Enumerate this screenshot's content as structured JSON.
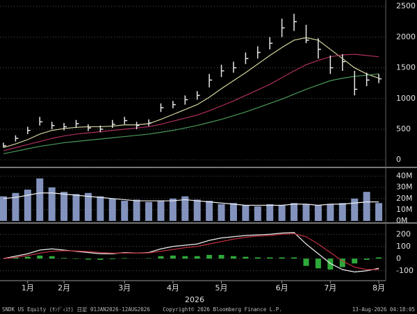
{
  "chart_data": [
    {
      "type": "ohlc",
      "high": [
        280,
        400,
        540,
        700,
        620,
        600,
        650,
        580,
        560,
        650,
        700,
        620,
        660,
        920,
        960,
        1050,
        1120,
        1400,
        1550,
        1600,
        1750,
        1850,
        2000,
        2300,
        2380,
        2200,
        1980,
        1700,
        1720,
        1450,
        1420,
        1400
      ],
      "low": [
        200,
        300,
        420,
        560,
        500,
        480,
        520,
        470,
        450,
        520,
        580,
        500,
        550,
        780,
        840,
        900,
        980,
        1180,
        1350,
        1420,
        1560,
        1650,
        1800,
        2000,
        2100,
        1900,
        1650,
        1400,
        1450,
        1050,
        1200,
        1250
      ],
      "close": [
        230,
        350,
        480,
        620,
        560,
        540,
        590,
        520,
        500,
        580,
        640,
        560,
        600,
        850,
        900,
        980,
        1050,
        1300,
        1450,
        1500,
        1650,
        1750,
        1900,
        2150,
        2250,
        1950,
        1800,
        1500,
        1600,
        1150,
        1300,
        1320
      ],
      "color": "#e8e8e8",
      "lines": [
        {
          "color": "#d6d6a0",
          "values": [
            200,
            260,
            330,
            420,
            480,
            510,
            530,
            540,
            540,
            550,
            570,
            570,
            590,
            660,
            740,
            820,
            900,
            1020,
            1160,
            1290,
            1420,
            1560,
            1700,
            1830,
            1950,
            1990,
            1950,
            1800,
            1650,
            1500,
            1400,
            1330
          ]
        },
        {
          "color": "#b03060",
          "values": [
            150,
            200,
            250,
            300,
            350,
            390,
            420,
            440,
            460,
            480,
            500,
            520,
            540,
            580,
            630,
            680,
            730,
            800,
            880,
            960,
            1050,
            1140,
            1230,
            1340,
            1450,
            1550,
            1620,
            1680,
            1710,
            1720,
            1700,
            1680
          ]
        },
        {
          "color": "#4a9a5a",
          "values": [
            100,
            140,
            180,
            220,
            250,
            280,
            300,
            320,
            340,
            360,
            380,
            400,
            420,
            450,
            480,
            520,
            560,
            610,
            660,
            720,
            780,
            850,
            920,
            990,
            1070,
            1150,
            1220,
            1290,
            1330,
            1360,
            1380,
            1400
          ]
        }
      ],
      "ylim": [
        -100,
        2570
      ],
      "yticks": [
        0,
        500,
        1000,
        1500,
        2000,
        2500
      ],
      "grid": true
    },
    {
      "type": "bar",
      "values": [
        22000000,
        25000000,
        28000000,
        38000000,
        30000000,
        26000000,
        24000000,
        25000000,
        22000000,
        20000000,
        18000000,
        19000000,
        17000000,
        18000000,
        20000000,
        22000000,
        19000000,
        18000000,
        15000000,
        16000000,
        14000000,
        13000000,
        15000000,
        14000000,
        16000000,
        15000000,
        14000000,
        15000000,
        16000000,
        20000000,
        26000000,
        16000000
      ],
      "color": "#8393bd",
      "lines": [
        {
          "color": "#f0f0f0",
          "values": [
            20000000,
            21000000,
            23000000,
            25000000,
            25000000,
            24000000,
            23000000,
            22000000,
            21000000,
            20000000,
            19000000,
            18000000,
            18000000,
            18000000,
            18000000,
            19000000,
            18000000,
            17000000,
            16000000,
            15000000,
            14000000,
            14000000,
            14000000,
            14000000,
            15000000,
            15000000,
            14000000,
            15000000,
            15000000,
            16000000,
            17000000,
            17000000
          ]
        }
      ],
      "ylim": [
        0,
        46000000
      ],
      "yticks": [
        {
          "value": 0,
          "label": "0M"
        },
        {
          "value": 10000000,
          "label": "10M"
        },
        {
          "value": 20000000,
          "label": "20M"
        },
        {
          "value": 30000000,
          "label": "30M"
        },
        {
          "value": 40000000,
          "label": "40M"
        }
      ],
      "grid": true
    },
    {
      "type": "macd",
      "categories": [
        null,
        null,
        "1月",
        null,
        null,
        "2月",
        null,
        null,
        null,
        null,
        "3月",
        null,
        null,
        null,
        "4月",
        null,
        null,
        null,
        "5月",
        null,
        null,
        null,
        null,
        "6月",
        null,
        null,
        null,
        "7月",
        null,
        null,
        null,
        "8月"
      ],
      "histogram": {
        "color": "#2fa83a",
        "values": [
          0,
          10,
          15,
          25,
          20,
          5,
          -3,
          -8,
          -10,
          -5,
          4,
          0,
          3,
          20,
          25,
          20,
          20,
          30,
          30,
          20,
          15,
          10,
          10,
          10,
          10,
          -60,
          -80,
          -90,
          -70,
          -40,
          -10,
          10
        ]
      },
      "lines": [
        {
          "color": "#f0f0f0",
          "values": [
            0,
            20,
            40,
            70,
            80,
            70,
            60,
            50,
            40,
            40,
            50,
            45,
            50,
            80,
            100,
            110,
            120,
            150,
            170,
            180,
            190,
            195,
            200,
            210,
            215,
            120,
            40,
            -40,
            -90,
            -110,
            -100,
            -80
          ]
        },
        {
          "color": "#c03040",
          "values": [
            0,
            10,
            25,
            45,
            60,
            65,
            63,
            58,
            50,
            45,
            46,
            45,
            47,
            60,
            75,
            90,
            100,
            120,
            140,
            160,
            175,
            185,
            190,
            200,
            205,
            180,
            120,
            50,
            -20,
            -70,
            -90,
            -90
          ]
        }
      ],
      "xlabel": "2026",
      "ylim": [
        -170,
        270
      ],
      "yticks": [
        -100,
        0,
        100,
        200
      ],
      "grid": true
    }
  ],
  "footer": [
    "SNDK US Equity (ｻﾝﾃﾞｨｽｸ) 日足 01JAN2026-12AUG2026",
    "Copyright© 2026 Bloomberg Finance L.P.",
    "13-Aug-2026 04:18:05"
  ]
}
